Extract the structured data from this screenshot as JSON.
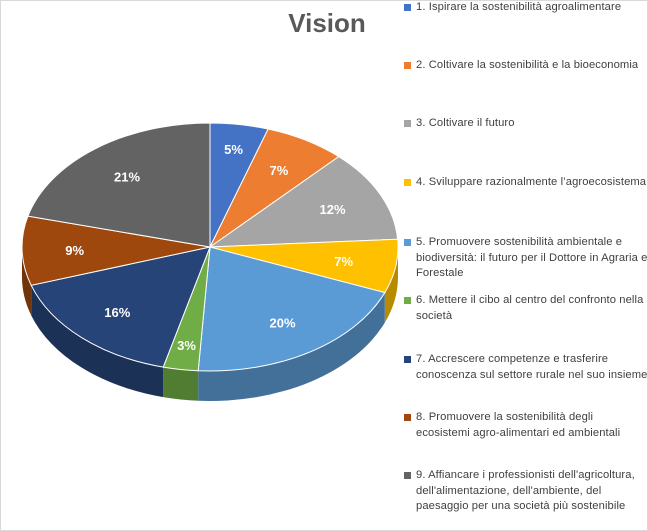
{
  "chart_data": {
    "type": "pie",
    "title": "Vision",
    "series": [
      {
        "label": "1. Ispirare la sostenibilità agroalimentare",
        "value": 5,
        "value_label": "5%",
        "color": "#4472c4"
      },
      {
        "label": "2. Coltivare la sostenibilità e la bioeconomia",
        "value": 7,
        "value_label": "7%",
        "color": "#ed7d31"
      },
      {
        "label": "3. Coltivare il futuro",
        "value": 12,
        "value_label": "12%",
        "color": "#a5a5a5"
      },
      {
        "label": "4. Sviluppare razionalmente l’agroecosistema",
        "value": 7,
        "value_label": "7%",
        "color": "#ffc000"
      },
      {
        "label": "5. Promuovere sostenibilità ambientale e biodiversità: il futuro per il Dottore in Agraria e Forestale",
        "value": 20,
        "value_label": "20%",
        "color": "#5b9bd5"
      },
      {
        "label": "6. Mettere il cibo al centro del confronto nella società",
        "value": 3,
        "value_label": "3%",
        "color": "#70ad47"
      },
      {
        "label": "7. Accrescere competenze e trasferire conoscenza sul settore rurale nel suo insieme",
        "value": 16,
        "value_label": "16%",
        "color": "#264478"
      },
      {
        "label": "8. Promuovere la sostenibilità degli ecosistemi agro-alimentari ed ambientali",
        "value": 9,
        "value_label": "9%",
        "color": "#9e480e"
      },
      {
        "label": "9. Affiancare i professionisti dell'agricoltura, dell'alimentazione, dell'ambiente, del paesaggio per una società più sostenibile",
        "value": 21,
        "value_label": "21%",
        "color": "#636363"
      }
    ],
    "legend_position": "right",
    "style": "3d"
  }
}
